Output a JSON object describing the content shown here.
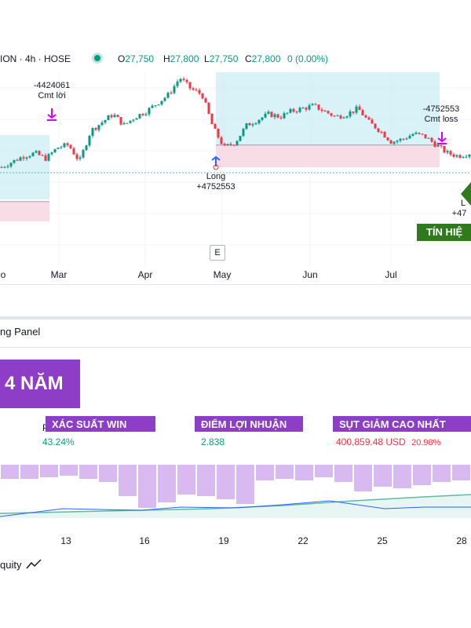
{
  "header": {
    "symbol_fragment": "ION · 4h · HOSE",
    "open_key": "O",
    "open_val": "27,750",
    "high_key": "H",
    "high_val": "27,800",
    "low_key": "L",
    "low_val": "27,750",
    "close_key": "C",
    "close_val": "27,800",
    "change": "0 (0.00%)"
  },
  "chart_data": {
    "type": "candlestick",
    "x_labels": [
      "o",
      "Mar",
      "Apr",
      "May",
      "Jun",
      "Jul"
    ],
    "annotations": {
      "exit1": {
        "line1": "-4424061",
        "line2": "Cmt lời"
      },
      "entry": {
        "line1": "Long",
        "line2": "+4752553"
      },
      "exit2": {
        "line1": "-4752553",
        "line2": "Cmt loss"
      },
      "entry2": {
        "line1": "L",
        "line2": "+47"
      }
    },
    "price_range": [
      27000,
      31500
    ],
    "close_path": [
      28100,
      28300,
      28500,
      28600,
      28400,
      28800,
      28900,
      28300,
      29400,
      29700,
      30000,
      29600,
      29900,
      30100,
      30400,
      30700,
      31300,
      30900,
      30700,
      29500,
      28800,
      29000,
      29600,
      29800,
      30000,
      29900,
      30100,
      30200,
      30300,
      30100,
      29900,
      30000,
      30200,
      29700,
      29400,
      29000,
      29100,
      29300,
      29200,
      28900,
      28600,
      28500,
      28600
    ]
  },
  "signal_label": "TÍN HIỆ",
  "e_badge": "E",
  "panel": {
    "title": "ng Panel",
    "years_banner": "4 NĂM",
    "stats": [
      {
        "label": "XÁC SUẤT WIN",
        "value": "43.24%",
        "value_color": "#089981"
      },
      {
        "label": "ĐIỂM LỢI NHUẬN",
        "value": "2.838",
        "value_color": "#089981"
      },
      {
        "label": "SỤT GIẢM CAO NHẤT",
        "value": "400,859.48 USD",
        "pct": "20.98%",
        "value_color": "#f23645"
      }
    ],
    "stat_hidden_letter": "P",
    "days": [
      "13",
      "16",
      "19",
      "22",
      "25",
      "28"
    ],
    "equity_label": "quity"
  }
}
